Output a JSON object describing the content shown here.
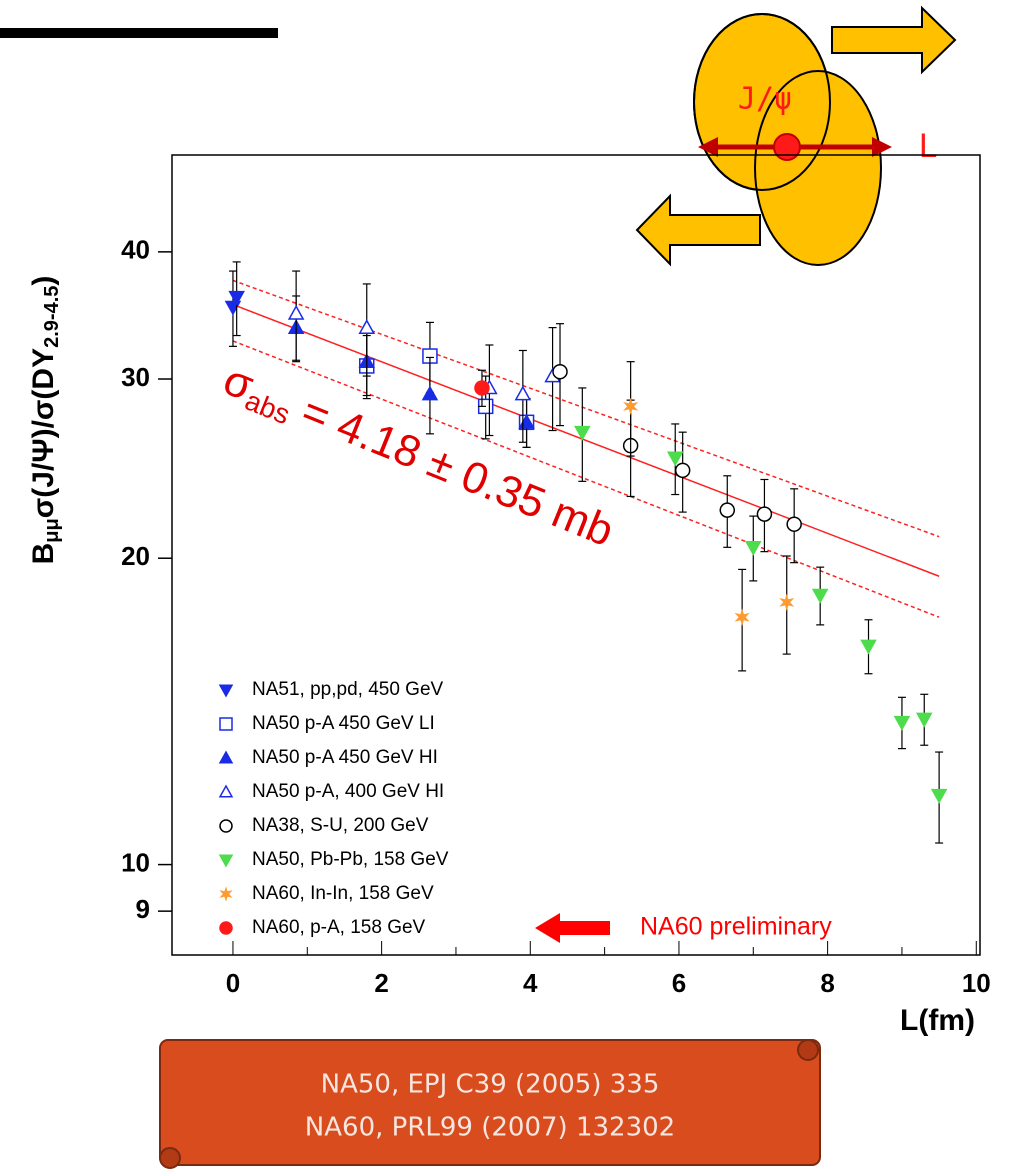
{
  "chart_data": {
    "type": "scatter",
    "ylog": true,
    "xlim": [
      -0.82,
      10.05
    ],
    "ylim": [
      8.15,
      49.8
    ],
    "xticks": [
      0,
      2,
      4,
      6,
      8,
      10
    ],
    "xminorticks": [
      1,
      3,
      5,
      7,
      9
    ],
    "yticks": [
      9,
      10,
      20,
      30,
      40
    ],
    "x_label": "L(fm)",
    "y_label": {
      "b": "B",
      "b_sub": "μμ",
      "main": "σ(J/Ψ)/σ(DY",
      "dy_sub": "2.9-4.5",
      "close": ")"
    },
    "series": [
      {
        "name": "NA51, pp,pd, 450 GeV",
        "color": "#1a2be6",
        "marker": "down",
        "x": [
          0.0,
          0.05
        ],
        "values": [
          35.3,
          36.1
        ],
        "errors": [
          3.0,
          3.0
        ]
      },
      {
        "name": "NA50 p-A 450 GeV LI",
        "color": "#1a2be6",
        "marker": "square-open",
        "x": [
          1.8,
          2.65,
          3.4,
          3.95
        ],
        "values": [
          30.9,
          31.6,
          28.2,
          27.2
        ],
        "errors": [
          2.2,
          2.5,
          2.0,
          1.5
        ]
      },
      {
        "name": "NA50 p-A 450 GeV HI",
        "color": "#1a2be6",
        "marker": "up",
        "x": [
          0.85,
          1.8,
          2.65,
          3.95
        ],
        "values": [
          33.7,
          31.2,
          29.0,
          27.2
        ],
        "errors": [
          2.5,
          2.3,
          2.5,
          1.5
        ]
      },
      {
        "name": "NA50 p-A, 400 GeV HI",
        "color": "#1a2be6",
        "marker": "up-open",
        "x": [
          0.85,
          1.8,
          3.45,
          3.9,
          4.3
        ],
        "values": [
          34.8,
          33.7,
          29.4,
          29.0,
          30.2
        ],
        "errors": [
          3.5,
          3.5,
          3.0,
          3.0,
          3.5
        ]
      },
      {
        "name": "NA38, S-U, 200 GeV",
        "color": "#000000",
        "marker": "circle-open",
        "x": [
          4.4,
          5.35,
          6.05,
          6.65,
          7.15,
          7.55
        ],
        "values": [
          30.5,
          25.8,
          24.4,
          22.3,
          22.1,
          21.6
        ],
        "errors": [
          3.5,
          2.8,
          2.2,
          1.8,
          1.8,
          1.8
        ]
      },
      {
        "name": "NA50, Pb-Pb, 158 GeV",
        "color": "#4cdc4c",
        "marker": "down",
        "x": [
          4.7,
          5.95,
          7.0,
          7.9,
          8.55,
          9.0,
          9.3,
          9.5
        ],
        "values": [
          26.6,
          25.1,
          20.5,
          18.4,
          16.4,
          13.8,
          13.9,
          11.7
        ],
        "errors": [
          2.8,
          2.0,
          1.5,
          1.2,
          1.0,
          0.8,
          0.8,
          1.2
        ]
      },
      {
        "name": "NA60, In-In, 158 GeV",
        "color": "#ff9a2e",
        "marker": "star",
        "x": [
          5.35,
          6.85,
          7.45
        ],
        "values": [
          28.2,
          17.5,
          18.1
        ],
        "errors": [
          3.0,
          2.0,
          2.0
        ]
      },
      {
        "name": "NA60, p-A, 158 GeV",
        "color": "#ff1a1a",
        "marker": "dot",
        "x": [
          3.35
        ],
        "values": [
          29.4
        ],
        "errors": [
          1.2
        ]
      }
    ],
    "fits": [
      {
        "style": "solid",
        "color": "#ff2020",
        "x": [
          0,
          9.5
        ],
        "values": [
          35.5,
          19.2
        ]
      },
      {
        "style": "dashed",
        "color": "#ff2020",
        "x": [
          0,
          9.5
        ],
        "values": [
          37.5,
          21.0
        ]
      },
      {
        "style": "dashed",
        "color": "#ff2020",
        "x": [
          0,
          9.5
        ],
        "values": [
          32.7,
          17.5
        ]
      }
    ],
    "annotation": {
      "sigma": "σ",
      "sub": "abs",
      "rest": "= 4.18 ± 0.35 mb"
    },
    "preliminary": "NA60 preliminary"
  },
  "diagram": {
    "particle": "J/ψ",
    "length": "L"
  },
  "reference": [
    "NA50, EPJ C39 (2005) 335",
    "NA60, PRL99 (2007) 132302"
  ]
}
